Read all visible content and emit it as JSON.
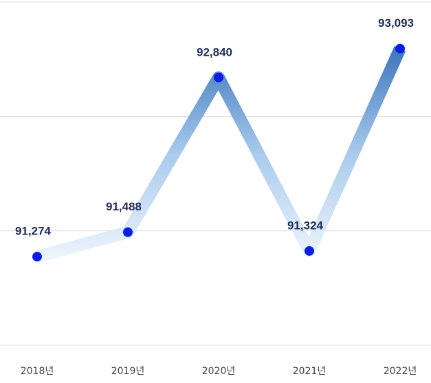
{
  "chart_data": {
    "type": "line",
    "categories": [
      "2018년",
      "2019년",
      "2020년",
      "2021년",
      "2022년"
    ],
    "values": [
      91274,
      91488,
      92840,
      91324,
      93093
    ],
    "value_labels": [
      "91,274",
      "91,488",
      "92,840",
      "91,324",
      "93,093"
    ],
    "color": "#0a1ee6",
    "ylim": [
      90500,
      93500
    ],
    "yticks": [
      90500,
      91500,
      92500,
      93500
    ],
    "grid": true
  }
}
